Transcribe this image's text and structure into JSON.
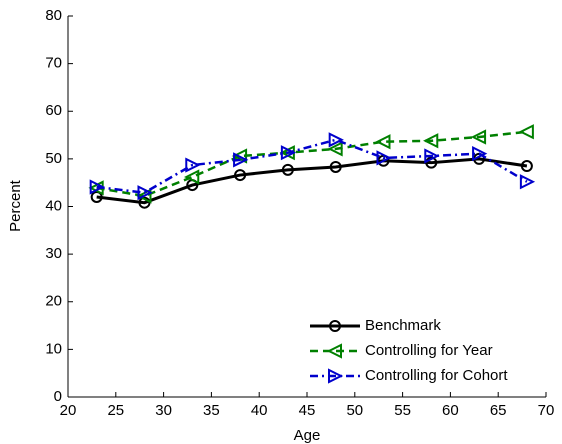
{
  "chart_data": {
    "type": "line",
    "x_label": "Age",
    "y_label": "Percent",
    "x": [
      23,
      28,
      33,
      38,
      43,
      48,
      53,
      58,
      63,
      68
    ],
    "series": [
      {
        "name": "Benchmark",
        "color": "#000000",
        "marker": "circle",
        "dash": "solid",
        "values": [
          42.0,
          40.8,
          44.5,
          46.6,
          47.7,
          48.3,
          49.6,
          49.2,
          50.0,
          48.5
        ]
      },
      {
        "name": "Controlling for Year",
        "color": "#008000",
        "marker": "triangle-left",
        "dash": "dashed",
        "values": [
          43.9,
          42.2,
          46.2,
          50.6,
          51.3,
          52.1,
          53.6,
          53.8,
          54.6,
          55.7
        ]
      },
      {
        "name": "Controlling for Cohort",
        "color": "#0000cc",
        "marker": "triangle-right",
        "dash": "dashdot",
        "values": [
          44.1,
          42.9,
          48.7,
          49.8,
          51.3,
          54.0,
          50.2,
          50.6,
          51.1,
          45.2
        ]
      }
    ],
    "xlim": [
      20,
      70
    ],
    "xticks": [
      20,
      25,
      30,
      35,
      40,
      45,
      50,
      55,
      60,
      65,
      70
    ],
    "ylim": [
      0,
      80
    ],
    "yticks": [
      0,
      10,
      20,
      30,
      40,
      50,
      60,
      70,
      80
    ],
    "grid": false,
    "legend": "lower right"
  }
}
